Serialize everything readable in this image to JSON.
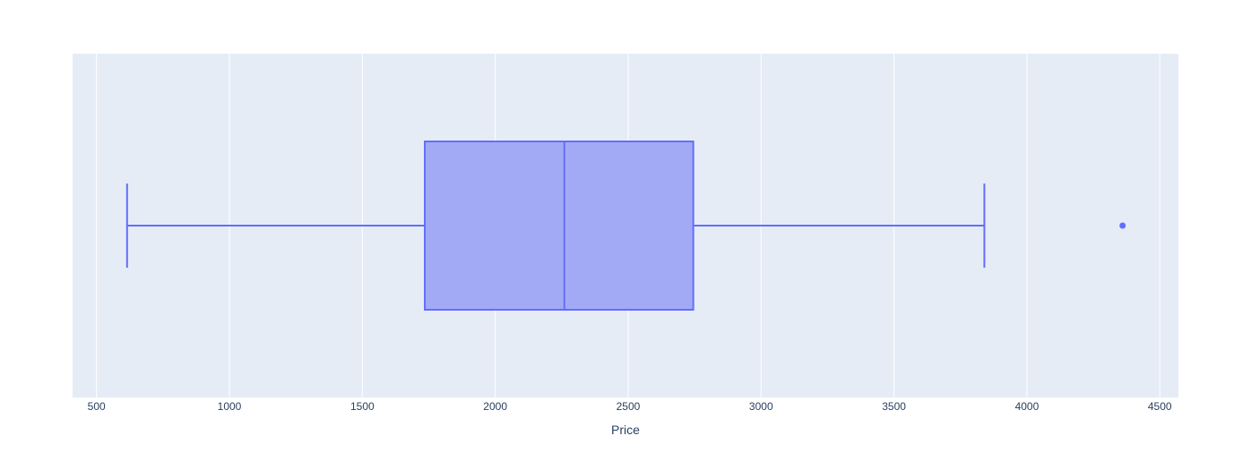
{
  "chart_data": {
    "type": "box",
    "orientation": "horizontal",
    "xlabel": "Price",
    "ylabel": "",
    "xlim": [
      410,
      4570
    ],
    "x_ticks": [
      500,
      1000,
      1500,
      2000,
      2500,
      3000,
      3500,
      4000,
      4500
    ],
    "x_tick_labels": [
      "500",
      "1000",
      "1500",
      "2000",
      "2500",
      "3000",
      "3500",
      "4000",
      "4500"
    ],
    "grid": true,
    "colors": {
      "plot_bg": "#e5ecf6",
      "grid": "#ffffff",
      "box_line": "#636efa",
      "box_fill": "#a3aaf5",
      "text": "#2a3f5f"
    },
    "box": {
      "lower_whisker": 615,
      "q1": 1735,
      "median": 2260,
      "q3": 2745,
      "upper_whisker": 3840,
      "outliers": [
        4360
      ]
    }
  }
}
